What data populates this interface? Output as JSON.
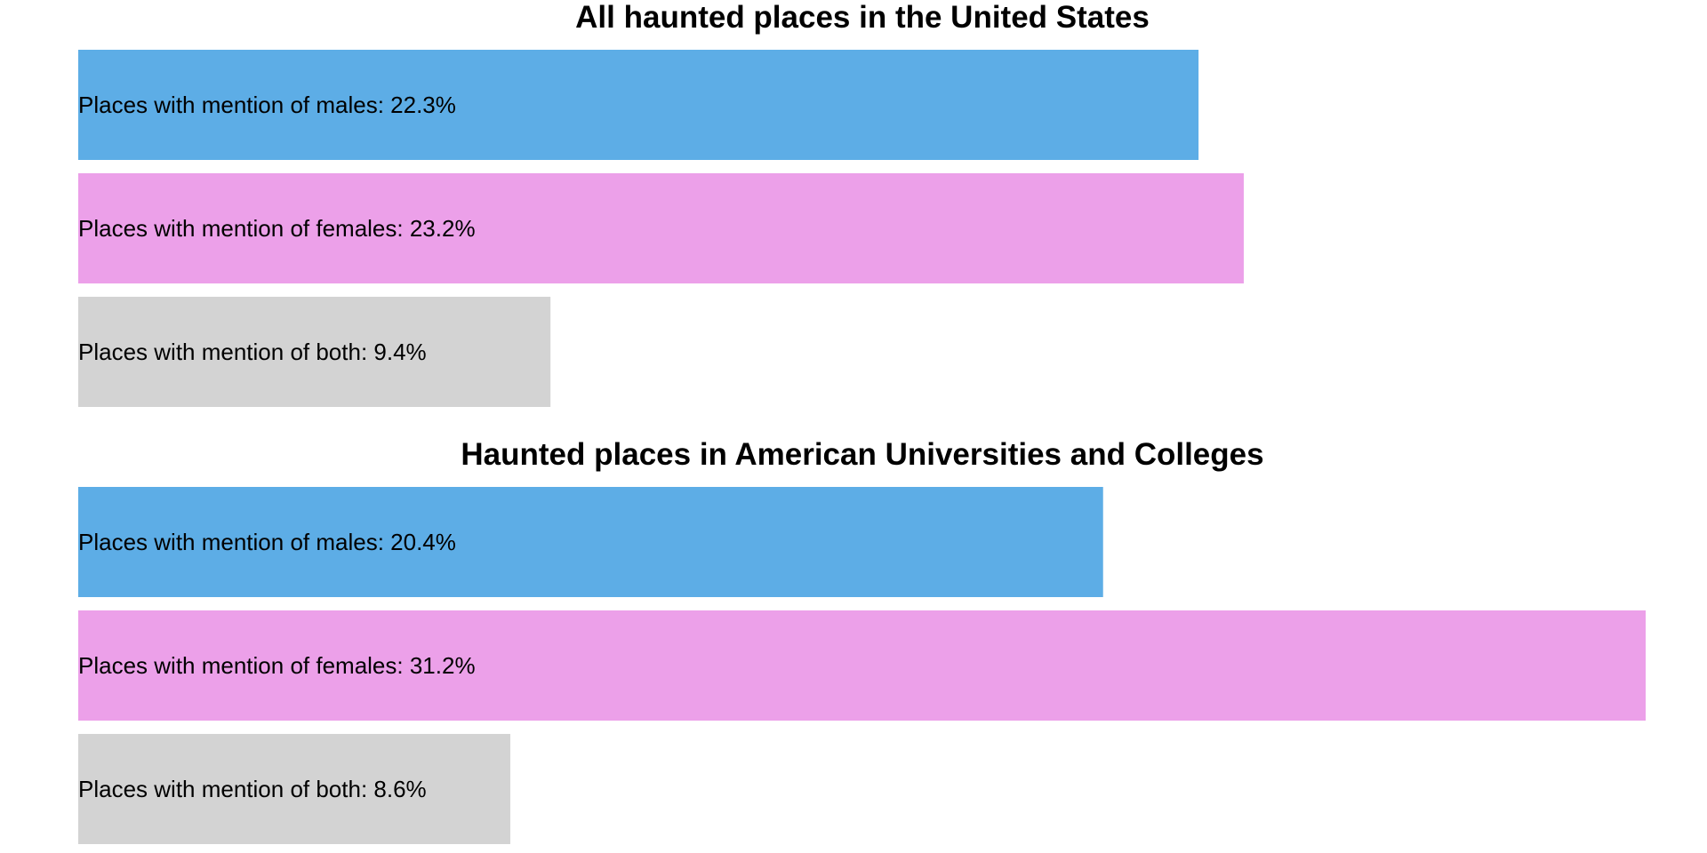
{
  "chart_data": [
    {
      "type": "bar",
      "orientation": "horizontal",
      "title": "All haunted places in the United States",
      "categories": [
        "males",
        "females",
        "both"
      ],
      "values": [
        22.3,
        23.2,
        9.4
      ],
      "labels": [
        "Places with mention of males: 22.3%",
        "Places with mention of females: 23.2%",
        "Places with mention of both: 9.4%"
      ],
      "colors": [
        "#5dade6",
        "#eca0e9",
        "#d3d3d3"
      ],
      "xlim": [
        0,
        31.2
      ],
      "grid": false,
      "axes_visible": false
    },
    {
      "type": "bar",
      "orientation": "horizontal",
      "title": "Haunted places in American Universities and Colleges",
      "categories": [
        "males",
        "females",
        "both"
      ],
      "values": [
        20.4,
        31.2,
        8.6
      ],
      "labels": [
        "Places with mention of males: 20.4%",
        "Places with mention of females: 31.2%",
        "Places with mention of both: 8.6%"
      ],
      "colors": [
        "#5dade6",
        "#eca0e9",
        "#d3d3d3"
      ],
      "xlim": [
        0,
        31.2
      ],
      "grid": false,
      "axes_visible": false
    }
  ]
}
